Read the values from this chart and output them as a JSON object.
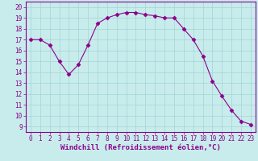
{
  "x": [
    0,
    1,
    2,
    3,
    4,
    5,
    6,
    7,
    8,
    9,
    10,
    11,
    12,
    13,
    14,
    15,
    16,
    17,
    18,
    19,
    20,
    21,
    22,
    23
  ],
  "y": [
    17.0,
    17.0,
    16.5,
    15.0,
    13.8,
    14.7,
    16.5,
    18.5,
    19.0,
    19.3,
    19.5,
    19.5,
    19.3,
    19.2,
    19.0,
    19.0,
    18.0,
    17.0,
    15.5,
    13.2,
    11.8,
    10.5,
    9.5,
    9.2
  ],
  "xlim": [
    -0.5,
    23.5
  ],
  "ylim": [
    8.5,
    20.5
  ],
  "yticks": [
    9,
    10,
    11,
    12,
    13,
    14,
    15,
    16,
    17,
    18,
    19,
    20
  ],
  "xticks": [
    0,
    1,
    2,
    3,
    4,
    5,
    6,
    7,
    8,
    9,
    10,
    11,
    12,
    13,
    14,
    15,
    16,
    17,
    18,
    19,
    20,
    21,
    22,
    23
  ],
  "xlabel": "Windchill (Refroidissement éolien,°C)",
  "line_color": "#8b008b",
  "marker": "D",
  "marker_size": 2.5,
  "bg_color": "#c8ecec",
  "grid_color": "#a8d8d8",
  "tick_label_fontsize": 5.5,
  "xlabel_fontsize": 6.5,
  "spine_color": "#8b008b"
}
